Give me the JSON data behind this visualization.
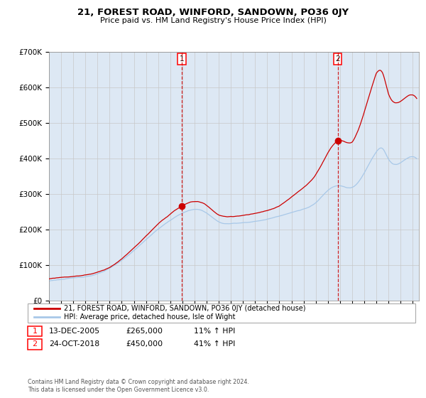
{
  "title": "21, FOREST ROAD, WINFORD, SANDOWN, PO36 0JY",
  "subtitle": "Price paid vs. HM Land Registry's House Price Index (HPI)",
  "hpi_color": "#a8c8e8",
  "property_color": "#cc0000",
  "background_color": "#ffffff",
  "plot_bg_color": "#dde8f4",
  "grid_color": "#c8c8c8",
  "sale1_date_num": 2005.95,
  "sale1_price": 265000,
  "sale1_label": "1",
  "sale2_date_num": 2018.81,
  "sale2_price": 450000,
  "sale2_label": "2",
  "legend1": "21, FOREST ROAD, WINFORD, SANDOWN, PO36 0JY (detached house)",
  "legend2": "HPI: Average price, detached house, Isle of Wight",
  "annotation1_date": "13-DEC-2005",
  "annotation1_price": "£265,000",
  "annotation1_hpi": "11% ↑ HPI",
  "annotation2_date": "24-OCT-2018",
  "annotation2_price": "£450,000",
  "annotation2_hpi": "41% ↑ HPI",
  "footer": "Contains HM Land Registry data © Crown copyright and database right 2024.\nThis data is licensed under the Open Government Licence v3.0.",
  "xmin": 1995.0,
  "xmax": 2025.5,
  "ymin": 0,
  "ymax": 700000
}
